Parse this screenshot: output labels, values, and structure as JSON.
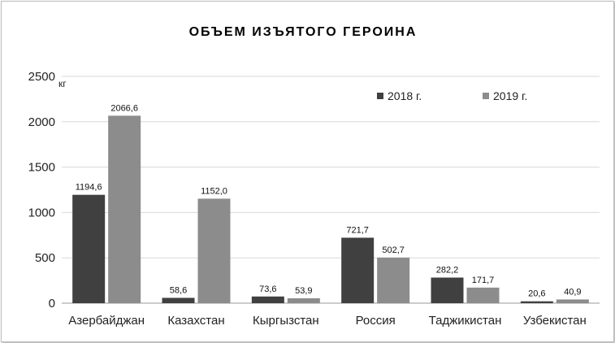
{
  "chart_data": {
    "type": "bar",
    "title": "ОБЪЕМ ИЗЪЯТОГО ГЕРОИНА",
    "ylabel": "кг",
    "xlabel": "",
    "ylim": [
      0,
      2500
    ],
    "yticks": [
      "0",
      "500",
      "1000",
      "1500",
      "2000",
      "2500"
    ],
    "grid": true,
    "legend_position": "top-right",
    "categories": [
      "Азербайджан",
      "Казахстан",
      "Кыргызстан",
      "Россия",
      "Таджикистан",
      "Узбекистан"
    ],
    "series": [
      {
        "name": "2018 г.",
        "color": "#404040",
        "values": [
          1194.6,
          58.6,
          73.6,
          721.7,
          282.2,
          20.6
        ],
        "labels": [
          "1194,6",
          "58,6",
          "73,6",
          "721,7",
          "282,2",
          "20,6"
        ]
      },
      {
        "name": "2019 г.",
        "color": "#8c8c8c",
        "values": [
          2066.6,
          1152.0,
          53.9,
          502.7,
          171.7,
          40.9
        ],
        "labels": [
          "2066,6",
          "1152,0",
          "53,9",
          "502,7",
          "171,7",
          "40,9"
        ]
      }
    ]
  }
}
